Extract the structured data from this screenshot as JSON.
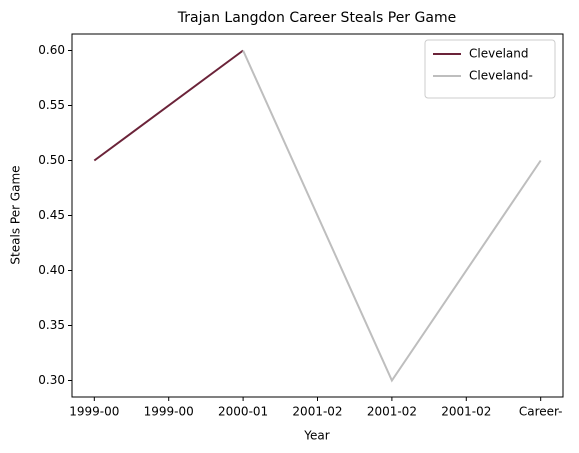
{
  "chart_data": {
    "type": "line",
    "title": "Trajan Langdon Career Steals Per Game",
    "xlabel": "Year",
    "ylabel": "Steals Per Game",
    "x": [
      0,
      1,
      2,
      3
    ],
    "series": [
      {
        "name": "Cleveland",
        "color": "#6b2339",
        "values": [
          0.5,
          0.6,
          null,
          null
        ]
      },
      {
        "name": "Cleveland-",
        "color": "#bebebe",
        "values": [
          null,
          0.6,
          0.3,
          0.5
        ]
      }
    ],
    "xlim": [
      -0.15,
      3.15
    ],
    "xticks": [
      {
        "value": 0,
        "label": "1999-00"
      },
      {
        "value": 0.5,
        "label": "1999-00"
      },
      {
        "value": 1,
        "label": "2000-01"
      },
      {
        "value": 1.5,
        "label": "2001-02"
      },
      {
        "value": 2,
        "label": "2001-02"
      },
      {
        "value": 2.5,
        "label": "2001-02"
      },
      {
        "value": 3,
        "label": "Career-"
      }
    ],
    "ylim": [
      0.285,
      0.615
    ],
    "yticks": [
      {
        "value": 0.3,
        "label": "0.30"
      },
      {
        "value": 0.35,
        "label": "0.35"
      },
      {
        "value": 0.4,
        "label": "0.40"
      },
      {
        "value": 0.45,
        "label": "0.45"
      },
      {
        "value": 0.5,
        "label": "0.50"
      },
      {
        "value": 0.55,
        "label": "0.55"
      },
      {
        "value": 0.6,
        "label": "0.60"
      }
    ],
    "legend": "upper right"
  }
}
